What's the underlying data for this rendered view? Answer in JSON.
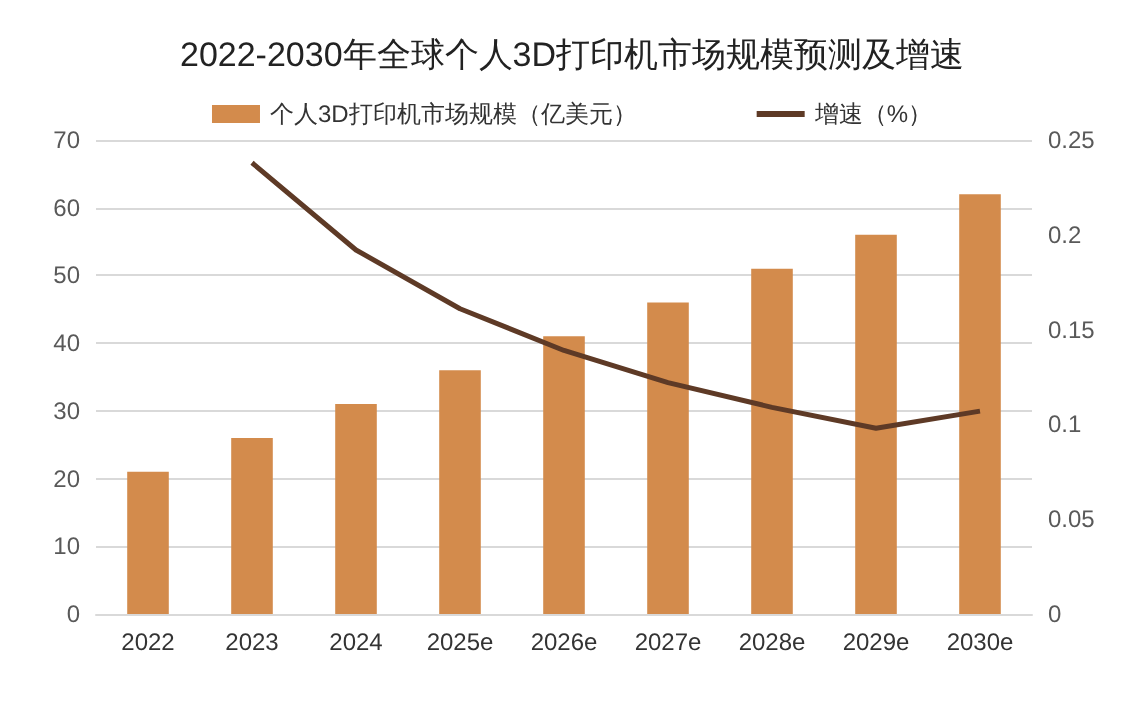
{
  "chart_data": {
    "type": "bar",
    "title": "2022-2030年全球个人3D打印机市场规模预测及增速",
    "categories": [
      "2022",
      "2023",
      "2024",
      "2025e",
      "2026e",
      "2027e",
      "2028e",
      "2029e",
      "2030e"
    ],
    "series": [
      {
        "name": "个人3D打印机市场规模（亿美元）",
        "color": "#d38b4c",
        "values": [
          21,
          26,
          31,
          36,
          41,
          46,
          51,
          56,
          62
        ]
      },
      {
        "name": "增速（%）",
        "type": "line",
        "axis": "y2",
        "color": "#5e3a26",
        "values": [
          null,
          0.238,
          0.192,
          0.161,
          0.139,
          0.122,
          0.109,
          0.098,
          0.107
        ]
      }
    ],
    "ylim": [
      0,
      70
    ],
    "yticks": [
      0,
      10,
      20,
      30,
      40,
      50,
      60,
      70
    ],
    "y2lim": [
      0,
      0.25
    ],
    "y2ticks": [
      0,
      0.05,
      0.1,
      0.15,
      0.2,
      0.25
    ],
    "grid": "y",
    "legend": "top",
    "marker": "none"
  }
}
